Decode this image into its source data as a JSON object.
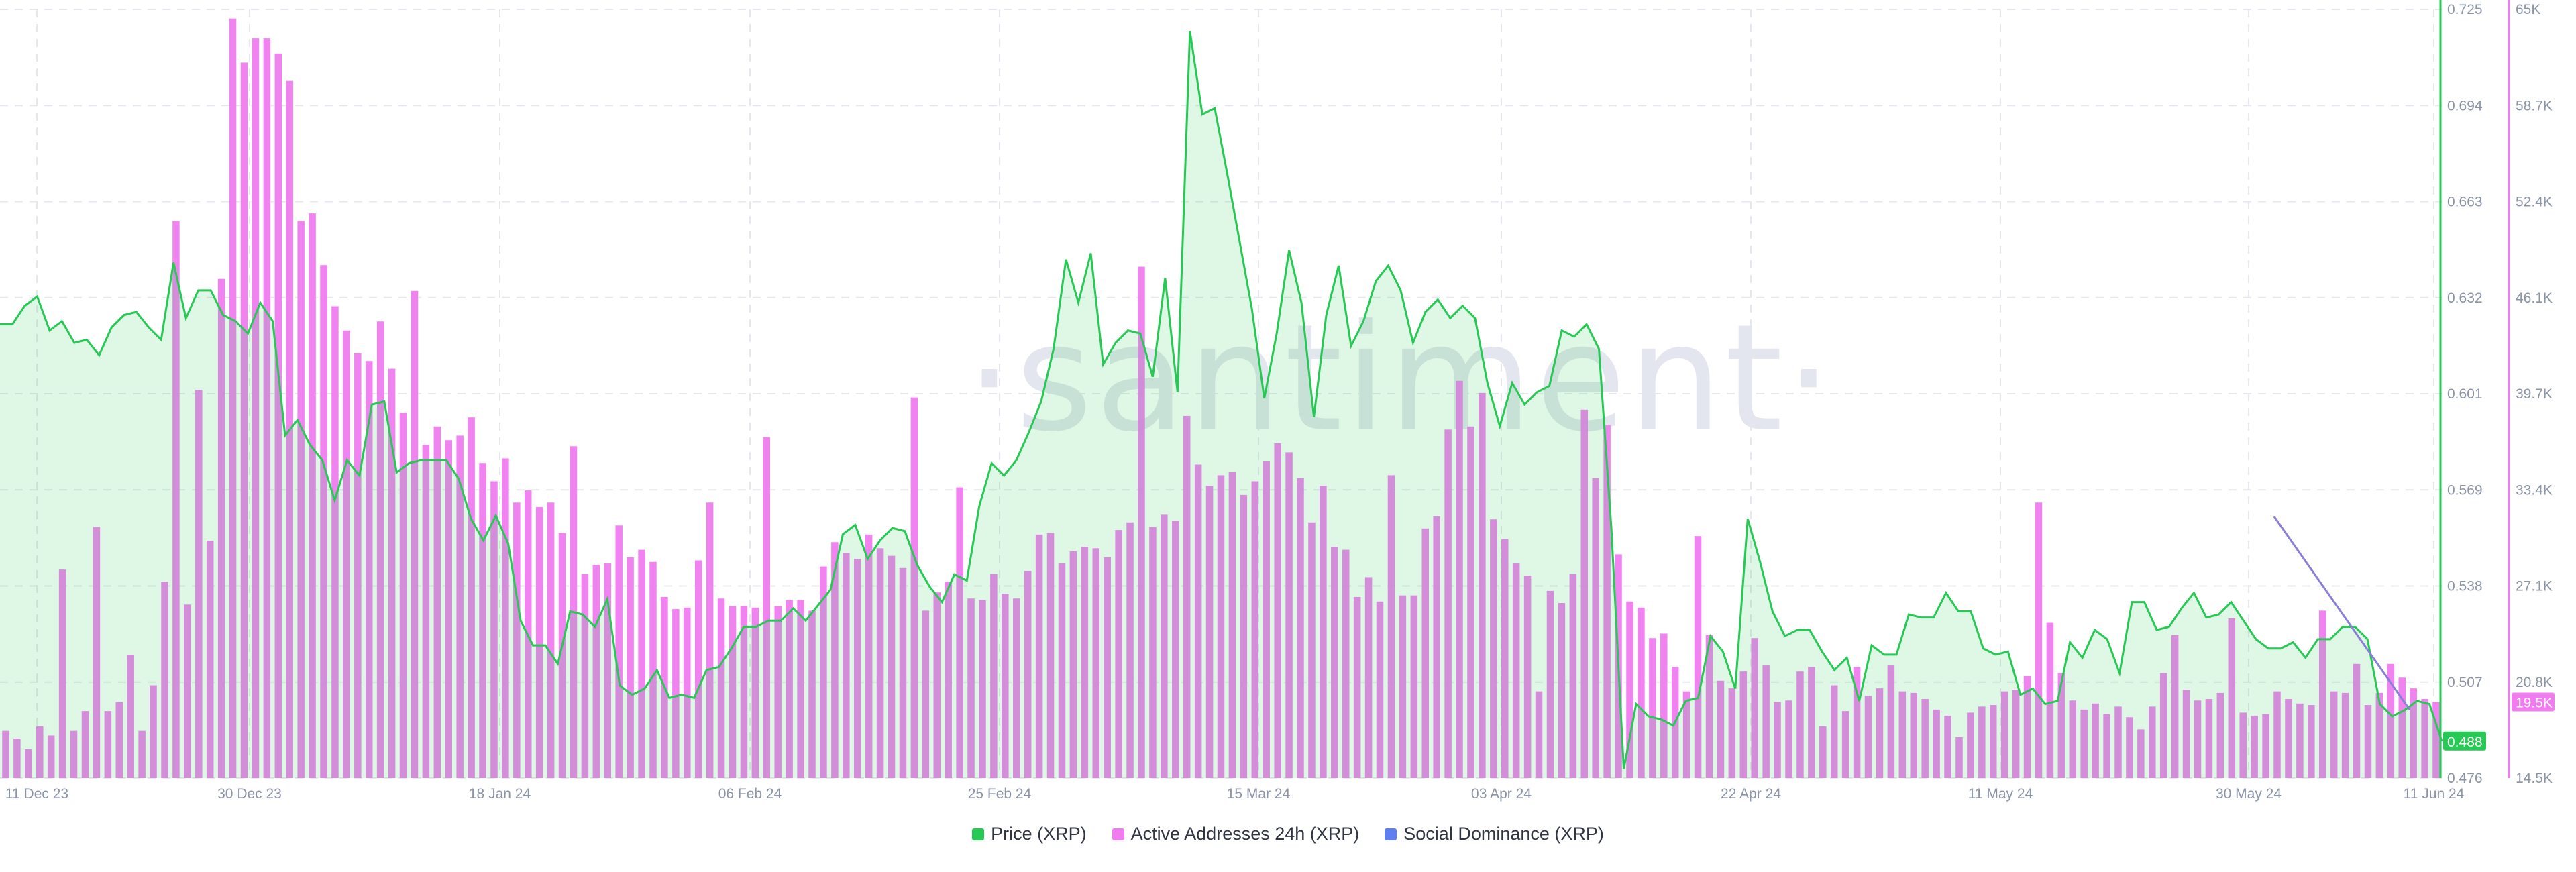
{
  "chart_data": {
    "type": "bar",
    "watermark": "·santiment·",
    "x_tick_labels": [
      "11 Dec 23",
      "30 Dec 23",
      "18 Jan 24",
      "06 Feb 24",
      "25 Feb 24",
      "15 Mar 24",
      "03 Apr 24",
      "22 Apr 24",
      "11 May 24",
      "30 May 24",
      "11 Jun 24"
    ],
    "price_axis": {
      "ylim": [
        0.476,
        0.725
      ],
      "ticks": [
        "0.725",
        "0.694",
        "0.663",
        "0.632",
        "0.601",
        "0.569",
        "0.538",
        "0.507",
        "0.476"
      ],
      "current_value_label": "0.488",
      "color": "#26c953"
    },
    "addresses_axis": {
      "ylim": [
        14500,
        65000
      ],
      "ticks": [
        "65K",
        "58.7K",
        "52.4K",
        "46.1K",
        "39.7K",
        "33.4K",
        "27.1K",
        "20.8K",
        "14.5K"
      ],
      "current_value_label": "19.5K",
      "color": "#f07cf0"
    },
    "series": [
      {
        "name": "Price (XRP)",
        "type": "area",
        "color": "#26c953",
        "values": [
          0.623,
          0.623,
          0.629,
          0.632,
          0.621,
          0.624,
          0.617,
          0.618,
          0.613,
          0.622,
          0.626,
          0.627,
          0.622,
          0.618,
          0.643,
          0.625,
          0.634,
          0.634,
          0.626,
          0.624,
          0.62,
          0.63,
          0.624,
          0.587,
          0.592,
          0.584,
          0.579,
          0.566,
          0.579,
          0.574,
          0.597,
          0.598,
          0.575,
          0.578,
          0.579,
          0.579,
          0.579,
          0.573,
          0.56,
          0.553,
          0.561,
          0.552,
          0.527,
          0.519,
          0.519,
          0.513,
          0.53,
          0.529,
          0.525,
          0.534,
          0.506,
          0.503,
          0.505,
          0.511,
          0.502,
          0.503,
          0.502,
          0.511,
          0.512,
          0.518,
          0.525,
          0.525,
          0.527,
          0.527,
          0.531,
          0.527,
          0.532,
          0.537,
          0.555,
          0.558,
          0.547,
          0.553,
          0.557,
          0.556,
          0.545,
          0.538,
          0.533,
          0.542,
          0.54,
          0.564,
          0.578,
          0.574,
          0.579,
          0.588,
          0.598,
          0.615,
          0.644,
          0.63,
          0.646,
          0.61,
          0.617,
          0.621,
          0.62,
          0.606,
          0.638,
          0.601,
          0.718,
          0.691,
          0.693,
          0.672,
          0.65,
          0.628,
          0.599,
          0.62,
          0.647,
          0.63,
          0.593,
          0.626,
          0.642,
          0.616,
          0.624,
          0.637,
          0.642,
          0.634,
          0.617,
          0.627,
          0.631,
          0.625,
          0.629,
          0.625,
          0.604,
          0.59,
          0.604,
          0.597,
          0.601,
          0.603,
          0.621,
          0.619,
          0.623,
          0.615,
          0.557,
          0.479,
          0.5,
          0.496,
          0.495,
          0.493,
          0.501,
          0.502,
          0.522,
          0.517,
          0.505,
          0.56,
          0.546,
          0.53,
          0.522,
          0.524,
          0.524,
          0.517,
          0.511,
          0.515,
          0.501,
          0.519,
          0.516,
          0.516,
          0.529,
          0.528,
          0.528,
          0.536,
          0.53,
          0.53,
          0.518,
          0.516,
          0.517,
          0.503,
          0.505,
          0.5,
          0.501,
          0.52,
          0.515,
          0.524,
          0.521,
          0.51,
          0.533,
          0.533,
          0.524,
          0.525,
          0.531,
          0.536,
          0.528,
          0.529,
          0.533,
          0.527,
          0.521,
          0.518,
          0.518,
          0.52,
          0.515,
          0.521,
          0.521,
          0.525,
          0.525,
          0.521,
          0.5,
          0.496,
          0.498,
          0.501,
          0.5,
          0.488
        ]
      },
      {
        "name": "Active Addresses 24h (XRP)",
        "type": "bar",
        "color": "#f07cf0",
        "values": [
          17600,
          17100,
          16400,
          17900,
          17300,
          28200,
          17600,
          18900,
          31000,
          18900,
          19500,
          22600,
          17600,
          20600,
          27400,
          51100,
          25900,
          40000,
          30100,
          47300,
          64400,
          61500,
          63100,
          63100,
          62100,
          60300,
          51100,
          51600,
          48200,
          45500,
          43900,
          42400,
          41900,
          44500,
          41400,
          38500,
          46500,
          36400,
          37600,
          36700,
          37000,
          38200,
          35200,
          34000,
          35500,
          32600,
          33400,
          32300,
          32600,
          30600,
          36300,
          27900,
          28500,
          28600,
          31100,
          29000,
          29500,
          28700,
          26400,
          25600,
          25700,
          28800,
          32600,
          26300,
          25800,
          25800,
          25700,
          36900,
          25800,
          26200,
          26200,
          25500,
          28400,
          30000,
          29300,
          28900,
          30500,
          29600,
          29100,
          28300,
          39500,
          25500,
          26700,
          27400,
          33600,
          26300,
          26200,
          27900,
          26600,
          26300,
          28100,
          30500,
          30600,
          28600,
          29400,
          29700,
          29600,
          29000,
          30800,
          31300,
          48100,
          31000,
          31800,
          31400,
          38300,
          35100,
          33700,
          34400,
          34600,
          33100,
          34000,
          35300,
          36500,
          35900,
          34200,
          31300,
          33700,
          29700,
          29500,
          26400,
          27700,
          26100,
          34400,
          26500,
          26500,
          30900,
          31700,
          37400,
          40600,
          37600,
          39800,
          31500,
          30200,
          28600,
          27800,
          20200,
          26800,
          26000,
          27900,
          38700,
          34200,
          37700,
          29200,
          26100,
          25700,
          23700,
          24000,
          21800,
          20200,
          30400,
          23900,
          20900,
          20400,
          21500,
          23700,
          21900,
          19500,
          19600,
          21500,
          21800,
          17900,
          20600,
          18900,
          21800,
          19900,
          20400,
          21900,
          20200,
          20100,
          19700,
          19000,
          18600,
          17200,
          18800,
          19200,
          19300,
          20200,
          20300,
          21200,
          32600,
          24700,
          21400,
          19600,
          19000,
          19400,
          18700,
          19200,
          18500,
          17700,
          19200,
          21400,
          23900,
          20300,
          19600,
          19700,
          20100,
          25000,
          18800,
          18600,
          18700,
          20200,
          19700,
          19400,
          19300,
          25500,
          20200,
          20100,
          22000,
          19300,
          20100,
          22000,
          21100,
          20400,
          19700,
          19500
        ]
      },
      {
        "name": "Social Dominance (XRP)",
        "type": "line",
        "color": "#5f7ff0"
      }
    ],
    "legend": [
      {
        "label": "Price (XRP)",
        "color": "#26c953"
      },
      {
        "label": "Active Addresses 24h (XRP)",
        "color": "#f07cf0"
      },
      {
        "label": "Social Dominance (XRP)",
        "color": "#5f7ff0"
      }
    ],
    "grid": true,
    "legend_position": "bottom-center"
  }
}
